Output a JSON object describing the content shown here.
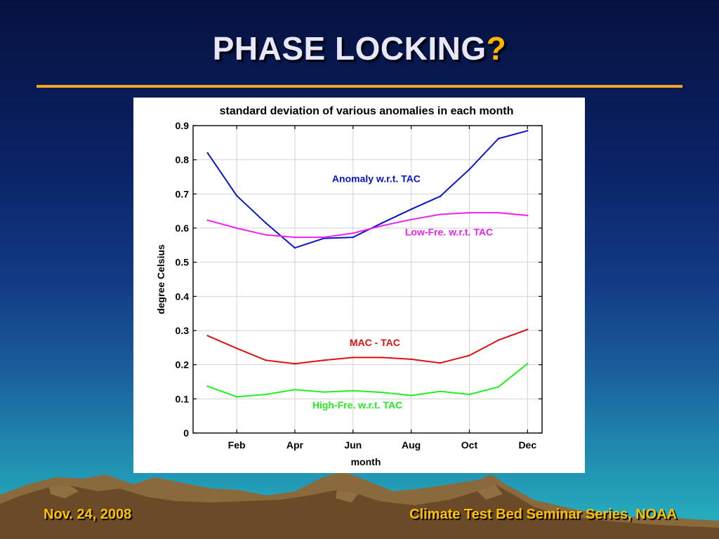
{
  "slide": {
    "title": "PHASE LOCKING",
    "title_mark": "?",
    "footer_left": "Nov. 24, 2008",
    "footer_right": "Climate Test Bed Seminar Series, NOAA",
    "colors": {
      "title": "#e6e6ff",
      "accent": "#ffb400",
      "footer": "#ffc000",
      "rule": "#f4a81e"
    }
  },
  "chart_data": {
    "type": "line",
    "title": "standard deviation of various anomalies in each month",
    "xlabel": "month",
    "ylabel": "degree Celsius",
    "x": [
      1,
      2,
      3,
      4,
      5,
      6,
      7,
      8,
      9,
      10,
      11,
      12
    ],
    "xlim": [
      0.5,
      12.5
    ],
    "xticks": [
      2,
      4,
      6,
      8,
      10,
      12
    ],
    "xtick_labels": [
      "Feb",
      "Apr",
      "Jun",
      "Aug",
      "Oct",
      "Dec"
    ],
    "ylim": [
      0,
      0.9
    ],
    "yticks": [
      0,
      0.1,
      0.2,
      0.3,
      0.4,
      0.5,
      0.6,
      0.7,
      0.8,
      0.9
    ],
    "ytick_labels": [
      "0",
      "0.1",
      "0.2",
      "0.3",
      "0.4",
      "0.5",
      "0.6",
      "0.7",
      "0.8",
      "0.9"
    ],
    "grid": true,
    "series": [
      {
        "name": "Anomaly w.r.t. TAC",
        "color": "#0a14cc",
        "values": [
          0.82,
          0.695,
          0.615,
          0.542,
          0.57,
          0.573,
          0.615,
          0.655,
          0.693,
          0.772,
          0.862,
          0.885
        ],
        "label_at": [
          6.8,
          0.735
        ]
      },
      {
        "name": "Low-Fre. w.r.t. TAC",
        "color": "#ee22ee",
        "values": [
          0.623,
          0.6,
          0.58,
          0.573,
          0.573,
          0.585,
          0.607,
          0.625,
          0.64,
          0.645,
          0.645,
          0.637
        ],
        "label_at": [
          9.3,
          0.578
        ]
      },
      {
        "name": "MAC - TAC",
        "color": "#dd1111",
        "values": [
          0.285,
          0.248,
          0.213,
          0.203,
          0.213,
          0.221,
          0.221,
          0.216,
          0.205,
          0.227,
          0.272,
          0.303
        ],
        "label_at": [
          6.75,
          0.255
        ]
      },
      {
        "name": "High-Fre. w.r.t. TAC",
        "color": "#22ee22",
        "values": [
          0.137,
          0.106,
          0.113,
          0.127,
          0.12,
          0.124,
          0.119,
          0.11,
          0.122,
          0.113,
          0.135,
          0.203
        ],
        "label_at": [
          6.15,
          0.072
        ]
      }
    ]
  }
}
